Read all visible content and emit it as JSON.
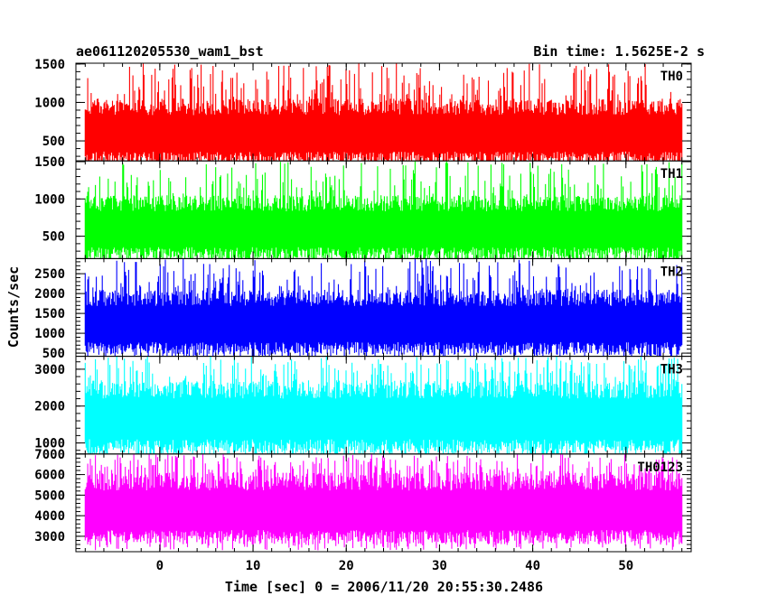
{
  "header": {
    "title": "ae061120205530_wam1_bst",
    "bin_time": "Bin time: 1.5625E-2 s"
  },
  "chart_data": {
    "type": "line",
    "title": "ae061120205530_wam1_bst",
    "xlabel": "Time [sec] 0 = 2006/11/20 20:55:30.2486",
    "ylabel": "Counts/sec",
    "xlim": [
      -9,
      57
    ],
    "x_ticks": [
      0,
      10,
      20,
      30,
      40,
      50
    ],
    "x_minor_step": 2,
    "x_start": -8,
    "x_end": 56,
    "panels": [
      {
        "name": "TH0",
        "color": "#ff0000",
        "ylim": [
          240,
          1510
        ],
        "y_ticks": [
          500,
          1000,
          1500
        ],
        "minor_step": 100,
        "base_low": 190,
        "base_high": 1050,
        "spike_high": 1510
      },
      {
        "name": "TH1",
        "color": "#00ff00",
        "ylim": [
          200,
          1510
        ],
        "y_ticks": [
          500,
          1000,
          1500
        ],
        "minor_step": 100,
        "base_low": 180,
        "base_high": 1050,
        "spike_high": 1510
      },
      {
        "name": "TH2",
        "color": "#0000ff",
        "ylim": [
          420,
          2880
        ],
        "y_ticks": [
          500,
          1000,
          1500,
          2000,
          2500
        ],
        "minor_step": 100,
        "base_low": 450,
        "base_high": 2100,
        "spike_high": 2880
      },
      {
        "name": "TH3",
        "color": "#00ffff",
        "ylim": [
          700,
          3350
        ],
        "y_ticks": [
          1000,
          2000,
          3000
        ],
        "minor_step": 200,
        "base_low": 700,
        "base_high": 2700,
        "spike_high": 3350
      },
      {
        "name": "TH0123",
        "color": "#ff00ff",
        "ylim": [
          2250,
          7000
        ],
        "y_ticks": [
          3000,
          4000,
          5000,
          6000,
          7000
        ],
        "minor_step": 200,
        "base_low": 2600,
        "base_high": 6100,
        "spike_high": 7000
      }
    ],
    "grid": false,
    "legend": "none"
  }
}
